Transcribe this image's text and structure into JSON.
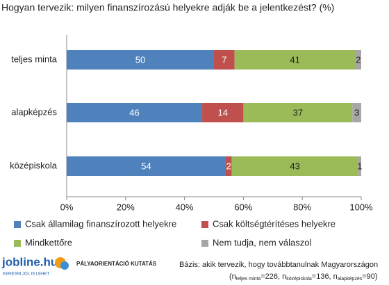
{
  "chart_data": {
    "type": "stacked-bar-horizontal",
    "title": "Hogyan tervezik: milyen finanszírozású helyekre adják be a jelentkezést? (%)",
    "categories": [
      "teljes minta",
      "alapképzés",
      "középiskola"
    ],
    "series": [
      {
        "name": "Csak államilag finanszírozott helyekre",
        "color": "#4f81bd",
        "label_color": "#ffffff",
        "values": [
          50,
          46,
          54
        ]
      },
      {
        "name": "Csak költségtérítéses helyekre",
        "color": "#c0504d",
        "label_color": "#ffffff",
        "values": [
          7,
          14,
          2
        ]
      },
      {
        "name": "Mindkettőre",
        "color": "#9bbb59",
        "label_color": "#222222",
        "values": [
          41,
          37,
          43
        ]
      },
      {
        "name": "Nem tudja, nem válaszol",
        "color": "#a6a6a6",
        "label_color": "#222222",
        "values": [
          2,
          3,
          1
        ]
      }
    ],
    "xlim": [
      0,
      100
    ],
    "xticks": [
      {
        "value": 0,
        "label": "0%"
      },
      {
        "value": 20,
        "label": "20%"
      },
      {
        "value": 40,
        "label": "40%"
      },
      {
        "value": 60,
        "label": "60%"
      },
      {
        "value": 80,
        "label": "80%"
      },
      {
        "value": 100,
        "label": "100%"
      }
    ],
    "grid": false,
    "legend": "bottom"
  },
  "footer": {
    "logo": "jobline.hu",
    "tagline": "KERESNI JÓL IS LEHET",
    "survey": "PÁLYAORIENTÁCIÓ KUTATÁS",
    "base": "Bázis: akik tervezik, hogy továbbtanulnak Magyarországon",
    "sample_note": [
      "(n",
      "teljes minta",
      "=226, n",
      "középiskola",
      "=136, n",
      "alapképzés",
      "=90)"
    ]
  }
}
